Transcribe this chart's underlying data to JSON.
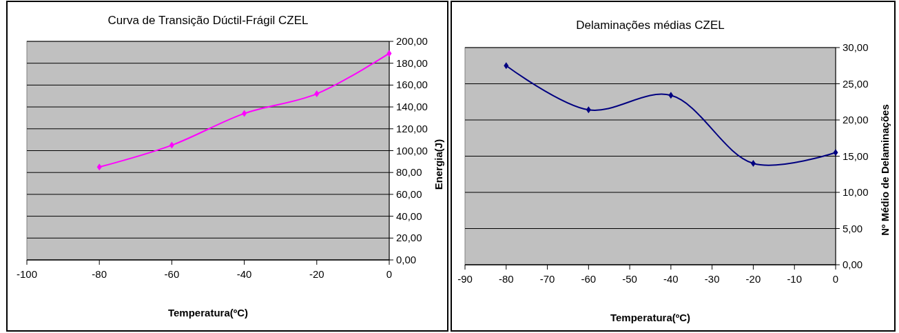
{
  "chart_data": [
    {
      "type": "line",
      "title": "Curva de Transição Dúctil-Frágil CZEL",
      "xlabel": "Temperatura(ºC)",
      "ylabel": "Energia(J)",
      "x": [
        -80,
        -60,
        -40,
        -20,
        0
      ],
      "series": [
        {
          "color": "#ff00ff",
          "values": [
            85,
            105,
            134,
            152,
            189
          ]
        }
      ],
      "xlim": [
        -100,
        0
      ],
      "xticks": [
        -100,
        -80,
        -60,
        -40,
        -20,
        0
      ],
      "ylim": [
        0,
        200
      ],
      "yticks": [
        {
          "value": 0,
          "label": "0,00"
        },
        {
          "value": 20,
          "label": "20,00"
        },
        {
          "value": 40,
          "label": "40,00"
        },
        {
          "value": 60,
          "label": "60,00"
        },
        {
          "value": 80,
          "label": "80,00"
        },
        {
          "value": 100,
          "label": "100,00"
        },
        {
          "value": 120,
          "label": "120,00"
        },
        {
          "value": 140,
          "label": "140,00"
        },
        {
          "value": 160,
          "label": "160,00"
        },
        {
          "value": 180,
          "label": "180,00"
        },
        {
          "value": 200,
          "label": "200,00"
        }
      ],
      "grid": "y",
      "marker": "diamond",
      "line_style": "solid"
    },
    {
      "type": "line",
      "title": "Delaminações médias CZEL",
      "xlabel": "Temperatura(ºC)",
      "ylabel": "Nº Médio de Delaminações",
      "x": [
        -80,
        -60,
        -40,
        -20,
        0
      ],
      "series": [
        {
          "color": "#000080",
          "values": [
            27.5,
            21.4,
            23.4,
            14.0,
            15.5
          ]
        }
      ],
      "xlim": [
        -90,
        0
      ],
      "xticks": [
        -90,
        -80,
        -70,
        -60,
        -50,
        -40,
        -30,
        -20,
        -10,
        0
      ],
      "ylim": [
        0,
        30
      ],
      "yticks": [
        {
          "value": 0,
          "label": "0,00"
        },
        {
          "value": 5,
          "label": "5,00"
        },
        {
          "value": 10,
          "label": "10,00"
        },
        {
          "value": 15,
          "label": "15,00"
        },
        {
          "value": 20,
          "label": "20,00"
        },
        {
          "value": 25,
          "label": "25,00"
        },
        {
          "value": 30,
          "label": "30,00"
        }
      ],
      "grid": "y",
      "marker": "diamond",
      "line_style": "solid"
    }
  ]
}
